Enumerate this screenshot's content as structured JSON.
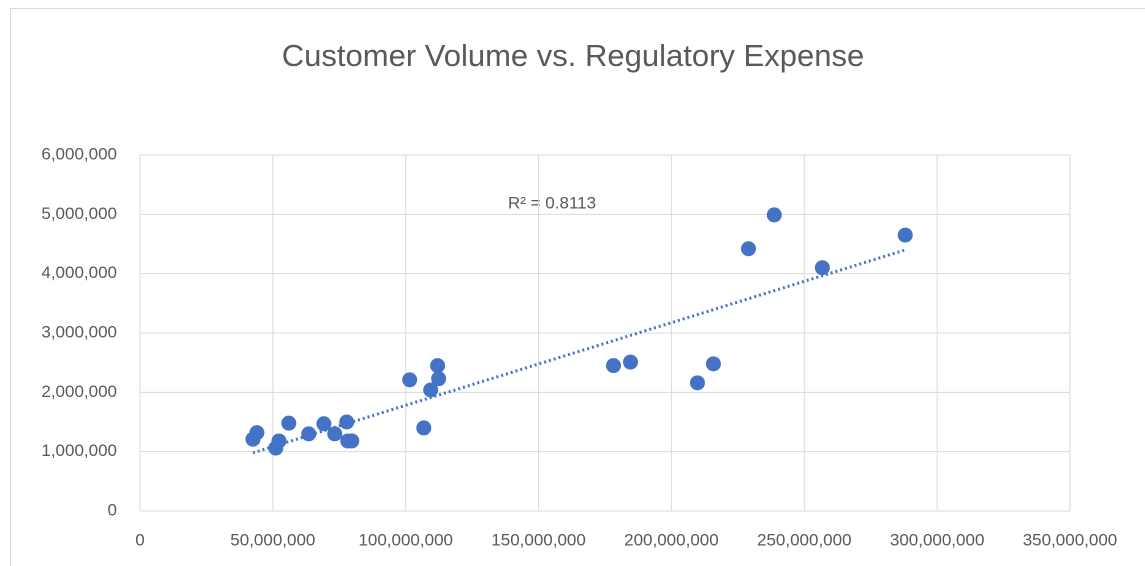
{
  "chart_data": {
    "type": "scatter",
    "title": "Customer Volume vs. Regulatory Expense",
    "annotation": "R² = 0.8113",
    "series": [
      {
        "color": "#4472c4",
        "x": [
          42500000,
          44000000,
          51100000,
          52300000,
          56000000,
          63500000,
          69200000,
          73300000,
          77800000,
          78200000,
          79700000,
          101500000,
          106800000,
          109400000,
          112000000,
          112400000,
          178200000,
          184600000,
          209800000,
          215800000,
          229000000,
          238700000,
          256800000,
          288000000
        ],
        "values": [
          1210000,
          1320000,
          1060000,
          1180000,
          1480000,
          1300000,
          1470000,
          1300000,
          1500000,
          1180000,
          1180000,
          2210000,
          1400000,
          2040000,
          2450000,
          2230000,
          2450000,
          2510000,
          2160000,
          2480000,
          4420000,
          4990000,
          4100000,
          4650000
        ]
      }
    ],
    "trendline": {
      "color": "#4472c4",
      "x": [
        42500000,
        288000000
      ],
      "values": [
        980000,
        4400000
      ]
    },
    "xlim": [
      0,
      350000000
    ],
    "xticks": [
      0,
      {
        "value": 50000000,
        "label": "50,000,000"
      },
      {
        "value": 100000000,
        "label": "100,000,000"
      },
      {
        "value": 150000000,
        "label": "150,000,000"
      },
      {
        "value": 200000000,
        "label": "200,000,000"
      },
      {
        "value": 250000000,
        "label": "250,000,000"
      },
      {
        "value": 300000000,
        "label": "300,000,000"
      },
      {
        "value": 350000000,
        "label": "350,000,000"
      }
    ],
    "ylim": [
      0,
      6000000
    ],
    "yticks": [
      0,
      {
        "value": 1000000,
        "label": "1,000,000"
      },
      {
        "value": 2000000,
        "label": "2,000,000"
      },
      {
        "value": 3000000,
        "label": "3,000,000"
      },
      {
        "value": 4000000,
        "label": "4,000,000"
      },
      {
        "value": 5000000,
        "label": "5,000,000"
      },
      {
        "value": 6000000,
        "label": "6,000,000"
      }
    ],
    "grid": true
  }
}
